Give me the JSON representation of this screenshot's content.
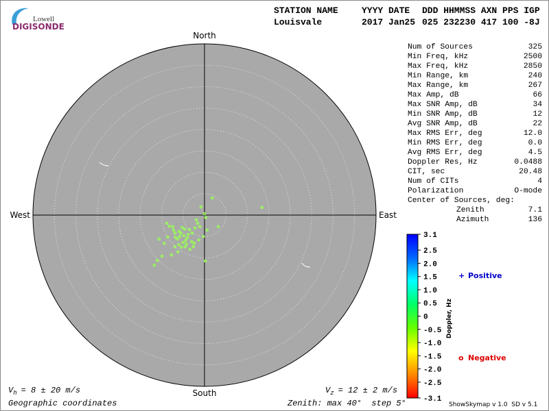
{
  "header": {
    "logo_top": "Lowell",
    "logo_bottom": "DIGISONDE",
    "labels": [
      "STATION NAME",
      "YYYY DATE",
      "DDD HHMMSS AXN PPS IGP"
    ],
    "values": [
      "Louisvale",
      "2017 Jan25",
      "025 232230 417 100 -8J"
    ]
  },
  "stats": {
    "rows": [
      [
        "Num of Sources",
        "325"
      ],
      [
        "Min Freq, kHz",
        "2500"
      ],
      [
        "Max Freq, kHz",
        "2850"
      ],
      [
        "Min Range, km",
        "240"
      ],
      [
        "Max Range, km",
        "267"
      ],
      [
        "Max Amp, dB",
        "66"
      ],
      [
        "Max SNR Amp, dB",
        "34"
      ],
      [
        "Min SNR Amp, dB",
        "12"
      ],
      [
        "Avg SNR Amp, dB",
        "22"
      ],
      [
        "Max RMS Err, deg",
        "12.0"
      ],
      [
        "Min RMS Err, deg",
        "0.0"
      ],
      [
        "Avg RMS Err, deg",
        "4.5"
      ],
      [
        "Doppler Res, Hz",
        "0.0488"
      ],
      [
        "CIT, sec",
        "20.48"
      ],
      [
        "Num of CITs",
        "4"
      ],
      [
        "Polarization",
        "O-mode"
      ]
    ],
    "center_label": "Center of Sources, deg:",
    "center_rows": [
      [
        "Zenith",
        "7.1"
      ],
      [
        "Azimuth",
        "136"
      ]
    ]
  },
  "chart_data": {
    "type": "scatter",
    "directions": {
      "north": "North",
      "east": "East",
      "south": "South",
      "west": "West"
    },
    "x": [
      1.8,
      13.4,
      -0.8,
      0.0,
      0.3,
      -1.9,
      3.2,
      0.6,
      0.2,
      -11.7,
      -11.0,
      -9.9,
      -8.8,
      -8.2,
      -7.4,
      -6.9,
      -5.8,
      -4.8,
      -4.0,
      -3.5,
      -2.9,
      -2.4,
      -1.3,
      -6.9,
      -6.2,
      -5.4,
      -7.7,
      -4.5,
      -3.4,
      -1.6,
      -1.1,
      -0.3,
      -9.4,
      -8.6,
      -10.6,
      -5.5,
      -4.4,
      -6.3,
      -5.0,
      -3.8,
      -6.8,
      -4.2,
      -5.9,
      -2.2,
      -3.0,
      -7.2,
      -4.6,
      -2.6,
      -5.2,
      -6.0
    ],
    "y": [
      4.0,
      1.8,
      1.9,
      0.3,
      -0.6,
      -1.1,
      -2.7,
      -3.5,
      -10.7,
      -11.7,
      -10.6,
      -9.6,
      -1.9,
      -2.6,
      -2.7,
      -4.2,
      -5.0,
      -4.8,
      -5.3,
      -3.4,
      -4.2,
      -6.6,
      -5.8,
      -7.4,
      -8.6,
      -7.5,
      -9.3,
      -7.4,
      -8.0,
      -1.9,
      -2.7,
      -5.0,
      -6.6,
      -5.1,
      -5.6,
      -4.2,
      -5.9,
      -5.6,
      -6.4,
      -4.5,
      -5.2,
      -6.8,
      -3.8,
      -3.0,
      -6.2,
      -3.5,
      -3.3,
      -7.4,
      -2.9,
      -6.9
    ],
    "color": "#99ff55",
    "xlim": [
      -40,
      40
    ],
    "ylim": [
      -40,
      40
    ],
    "rticks": [
      5,
      10,
      15,
      20,
      25,
      30,
      35,
      40
    ]
  },
  "colorbar": {
    "label": "Doppler, Hz",
    "clim": [
      -3.1,
      3.1
    ],
    "colors": [
      "#ff0000",
      "#ff8800",
      "#ffff00",
      "#66ff00",
      "#00ff66",
      "#00ffff",
      "#0066ff",
      "#0000ff"
    ],
    "ticks": [
      3.1,
      2.5,
      {
        "value": 2,
        "label": "2.0"
      },
      1.5,
      {
        "value": 1,
        "label": "1.0"
      },
      0.5,
      0,
      -0.5,
      {
        "value": -1,
        "label": "-1.0"
      },
      -1.5,
      {
        "value": -2,
        "label": "-2.0"
      },
      -2.5,
      -3.1
    ]
  },
  "legend": [
    {
      "symbol": "+",
      "label": "Positive",
      "color": "#0000cc"
    },
    {
      "symbol": "o",
      "label": "Negative",
      "color": "#dd0000"
    }
  ],
  "footer": {
    "vh": {
      "symbol": "V",
      "subscript": "h",
      "text": "= 8 ± 20 m/s"
    },
    "vz": {
      "symbol": "V",
      "subscript": "z",
      "text": "= 12 ± 2 m/s"
    },
    "coords": "Geographic coordinates",
    "zenith": "Zenith: max 40°  step 5°",
    "version": "ShowSkymap v 1.0  SD v 5.1"
  }
}
